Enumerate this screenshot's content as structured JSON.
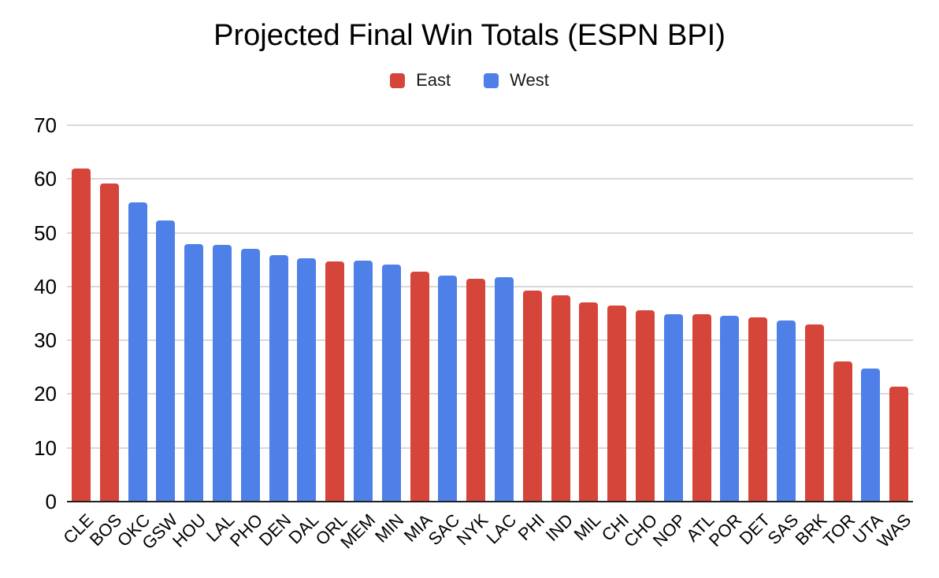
{
  "title": "Projected Final Win Totals (ESPN BPI)",
  "legend": {
    "east_label": "East",
    "west_label": "West"
  },
  "colors": {
    "east": "#D6453A",
    "west": "#4E80E8",
    "gridline": "#D9D9D9",
    "axis_line": "#212121",
    "text": "#000000",
    "background": "#FFFFFF"
  },
  "chart_data": {
    "type": "bar",
    "title": "Projected Final Win Totals (ESPN BPI)",
    "categories": [
      "CLE",
      "BOS",
      "OKC",
      "GSW",
      "HOU",
      "LAL",
      "PHO",
      "DEN",
      "DAL",
      "ORL",
      "MEM",
      "MIN",
      "MIA",
      "SAC",
      "NYK",
      "LAC",
      "PHI",
      "IND",
      "MIL",
      "CHI",
      "CHO",
      "NOP",
      "ATL",
      "POR",
      "DET",
      "SAS",
      "BRK",
      "TOR",
      "UTA",
      "WAS"
    ],
    "values": [
      62.0,
      59.1,
      55.7,
      52.3,
      47.9,
      47.7,
      47.0,
      45.8,
      45.3,
      44.6,
      44.8,
      44.1,
      42.7,
      42.0,
      41.5,
      41.7,
      39.2,
      38.3,
      37.1,
      36.4,
      35.6,
      34.9,
      34.8,
      34.6,
      34.2,
      33.7,
      33.0,
      26.1,
      24.7,
      21.4
    ],
    "groups": [
      "East",
      "East",
      "West",
      "West",
      "West",
      "West",
      "West",
      "West",
      "West",
      "East",
      "West",
      "West",
      "East",
      "West",
      "East",
      "West",
      "East",
      "East",
      "East",
      "East",
      "East",
      "West",
      "East",
      "West",
      "East",
      "West",
      "East",
      "East",
      "West",
      "East"
    ],
    "legend_entries": [
      "East",
      "West"
    ],
    "series_colors": {
      "East": "#D6453A",
      "West": "#4E80E8"
    },
    "xlabel": "",
    "ylabel": "",
    "ylim": [
      0,
      70
    ],
    "yticks": [
      0,
      10,
      20,
      30,
      40,
      50,
      60,
      70
    ],
    "grid": true,
    "legend_position": "top"
  }
}
